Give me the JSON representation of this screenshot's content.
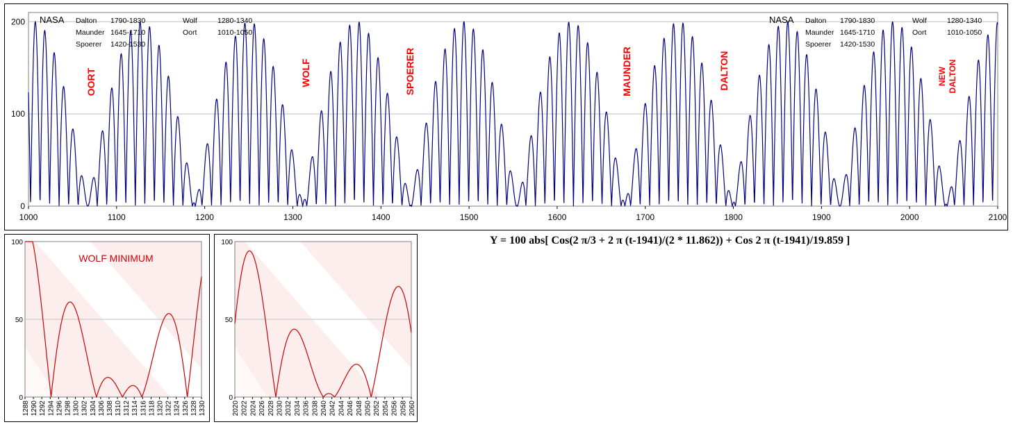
{
  "formula": "Y = 100 abs[ Cos(2 π/3 + 2 π (t-1941)/(2 * 11.862)) + Cos 2 π (t-1941)/19.859 ]",
  "chart_data": [
    {
      "type": "line",
      "title": "",
      "xlabel": "",
      "ylabel": "",
      "xlim": [
        1000,
        2100
      ],
      "ylim": [
        0,
        210
      ],
      "x_ticks": [
        1000,
        1100,
        1200,
        1300,
        1400,
        1500,
        1600,
        1700,
        1800,
        1900,
        2000,
        2100
      ],
      "y_ticks": [
        0,
        100,
        200
      ],
      "grid": "horizontal",
      "series": [
        {
          "color": "#000080",
          "equation": "100*abs(cos(2*pi/3 + 2*pi*(t-1941)/(2*11.862)) + cos(2*pi*(t-1941)/19.859))",
          "x_range": [
            1000,
            2100
          ]
        }
      ],
      "minima_labels": [
        "OORT",
        "WOLF",
        "SPOERER",
        "MAUNDER",
        "DALTON",
        "NEW DALTON"
      ],
      "legend": {
        "source": "NASA",
        "entries": [
          {
            "name": "Dalton",
            "period": "1790-1830"
          },
          {
            "name": "Wolf",
            "period": "1280-1340"
          },
          {
            "name": "Maunder",
            "period": "1645-1710"
          },
          {
            "name": "Oort",
            "period": "1010-1050"
          },
          {
            "name": "Spoerer",
            "period": "1420-1530"
          }
        ]
      }
    },
    {
      "type": "line",
      "title": "WOLF MINIMUM",
      "xlim": [
        1288,
        1330
      ],
      "ylim": [
        0,
        100
      ],
      "x_ticks": [
        "1288",
        "1290",
        "1292",
        "1294",
        "1296",
        "1298",
        "1300",
        "1302",
        "1304",
        "1306",
        "1308",
        "1310",
        "1312",
        "1314",
        "1316",
        "1318",
        "1320",
        "1322",
        "1324",
        "1326",
        "1328",
        "1330"
      ],
      "y_ticks": [
        0,
        50,
        100
      ],
      "grid": "horizontal",
      "series": [
        {
          "color": "#cc0000",
          "equation": "same as above",
          "x_range": [
            1288,
            1330
          ]
        }
      ]
    },
    {
      "type": "line",
      "title": "",
      "xlim": [
        2020,
        2060
      ],
      "ylim": [
        0,
        100
      ],
      "x_ticks": [
        "2020",
        "2022",
        "2024",
        "2026",
        "2028",
        "2030",
        "2032",
        "2034",
        "2036",
        "2038",
        "2040",
        "2042",
        "2044",
        "2046",
        "2048",
        "2050",
        "2052",
        "2054",
        "2056",
        "2058",
        "2060"
      ],
      "y_ticks": [
        0,
        50,
        100
      ],
      "grid": "horizontal",
      "series": [
        {
          "color": "#cc0000",
          "equation": "same as above",
          "x_range": [
            2020,
            2060
          ]
        }
      ]
    }
  ]
}
